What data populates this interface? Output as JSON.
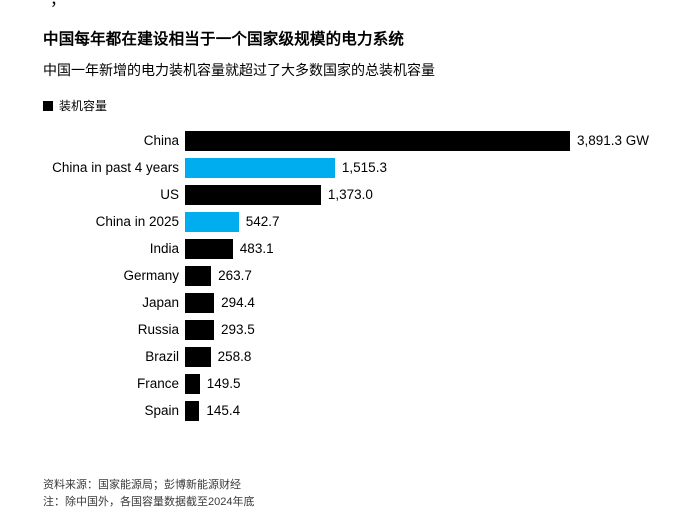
{
  "page": {
    "top_fragment": "，"
  },
  "header": {
    "title": "中国每年都在建设相当于一个国家级规模的电力系统",
    "subtitle": "中国一年新增的电力装机容量就超过了大多数国家的总装机容量"
  },
  "legend": {
    "label": "装机容量",
    "swatch_color": "#000000"
  },
  "chart_data": {
    "type": "bar",
    "orientation": "horizontal",
    "title": "中国每年都在建设相当于一个国家级规模的电力系统",
    "subtitle": "中国一年新增的电力装机容量就超过了大多数国家的总装机容量",
    "legend": [
      "装机容量"
    ],
    "legend_position": "top-left",
    "unit": "GW",
    "xlim": [
      0,
      3891.3
    ],
    "grid": false,
    "categories": [
      "China",
      "China in past 4 years",
      "US",
      "China in 2025",
      "India",
      "Germany",
      "Japan",
      "Russia",
      "Brazil",
      "France",
      "Spain"
    ],
    "values": [
      3891.3,
      1515.3,
      1373.0,
      542.7,
      483.1,
      263.7,
      294.4,
      293.5,
      258.8,
      149.5,
      145.4
    ],
    "value_labels": [
      "3,891.3 GW",
      "1,515.3",
      "1,373.0",
      "542.7",
      "483.1",
      "263.7",
      "294.4",
      "293.5",
      "258.8",
      "149.5",
      "145.4"
    ],
    "bar_colors": [
      "#000000",
      "#00aeef",
      "#000000",
      "#00aeef",
      "#000000",
      "#000000",
      "#000000",
      "#000000",
      "#000000",
      "#000000",
      "#000000"
    ],
    "colors": {
      "default": "#000000",
      "highlight": "#00aeef"
    }
  },
  "footer": {
    "source": "资料来源：国家能源局；彭博新能源财经",
    "note": "注：除中国外，各国容量数据截至2024年底"
  }
}
